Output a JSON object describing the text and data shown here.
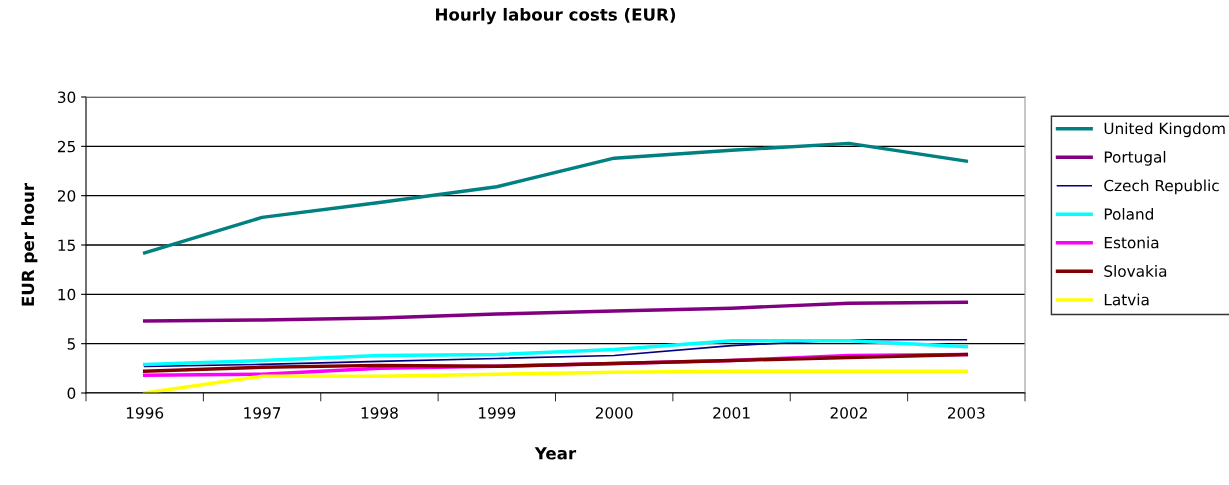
{
  "chart_data": {
    "type": "line",
    "title": "Hourly labour costs (EUR)",
    "xlabel": "Year",
    "ylabel": "EUR per hour",
    "categories": [
      "1996",
      "1997",
      "1998",
      "1999",
      "2000",
      "2001",
      "2002",
      "2003"
    ],
    "ylim": [
      0,
      30
    ],
    "yticks": [
      0,
      5,
      10,
      15,
      20,
      25,
      30
    ],
    "grid": "y",
    "legend": "right",
    "series": [
      {
        "name": "United Kingdom",
        "color": "#008080",
        "values": [
          14.2,
          17.8,
          19.3,
          20.9,
          23.8,
          24.6,
          25.3,
          23.5
        ]
      },
      {
        "name": "Portugal",
        "color": "#800080",
        "values": [
          7.3,
          7.4,
          7.6,
          8.0,
          8.3,
          8.6,
          9.1,
          9.2
        ]
      },
      {
        "name": "Czech Republic",
        "color": "#000080",
        "values": [
          2.7,
          2.9,
          3.2,
          3.5,
          3.8,
          4.8,
          5.4,
          5.4
        ]
      },
      {
        "name": "Poland",
        "color": "#00ffff",
        "values": [
          2.9,
          3.3,
          3.8,
          3.9,
          4.4,
          5.3,
          5.3,
          4.7
        ]
      },
      {
        "name": "Estonia",
        "color": "#ff00ff",
        "values": [
          1.8,
          1.9,
          2.5,
          2.7,
          3.0,
          3.3,
          3.8,
          3.9
        ]
      },
      {
        "name": "Slovakia",
        "color": "#800000",
        "values": [
          2.2,
          2.6,
          2.8,
          2.7,
          3.0,
          3.3,
          3.6,
          3.9
        ]
      },
      {
        "name": "Latvia",
        "color": "#ffff00",
        "values": [
          0.0,
          1.7,
          1.7,
          1.9,
          2.1,
          2.2,
          2.2,
          2.2
        ]
      }
    ]
  }
}
